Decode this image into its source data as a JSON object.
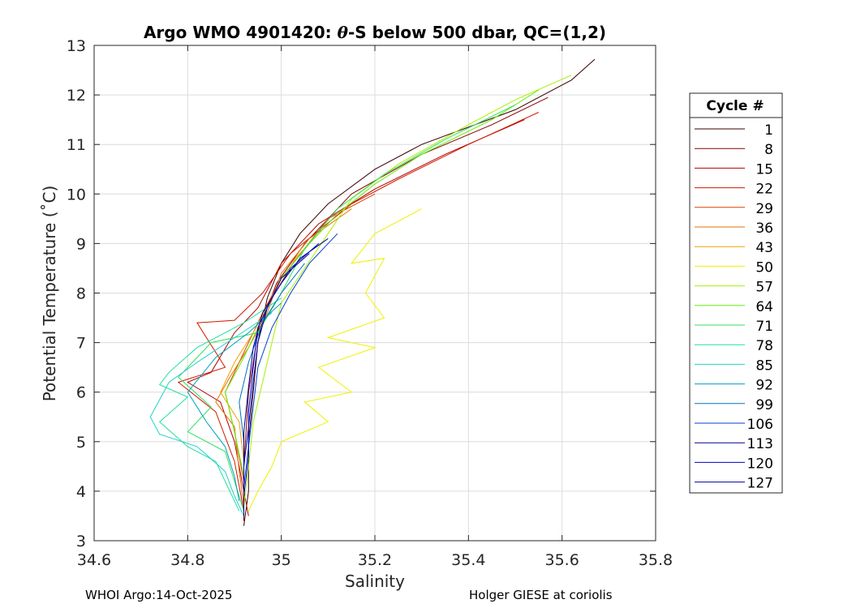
{
  "chart_data": {
    "type": "line",
    "title_main": "Argo WMO 4901420: ",
    "title_theta": "θ",
    "title_rest": "-S below 500 dbar,  QC=(1,2)",
    "xlabel": "Salinity",
    "ylabel": "Potential Temperature (˚C)",
    "xlim": [
      34.6,
      35.8
    ],
    "ylim": [
      3,
      13
    ],
    "xticks": [
      "34.6",
      "34.8",
      "35",
      "35.2",
      "35.4",
      "35.6",
      "35.8"
    ],
    "yticks": [
      "3",
      "4",
      "5",
      "6",
      "7",
      "8",
      "9",
      "10",
      "11",
      "12",
      "13"
    ],
    "grid": true,
    "legend": {
      "title": "Cycle #",
      "placement": "outside-right",
      "entries": [
        "1",
        "8",
        "15",
        "22",
        "29",
        "36",
        "43",
        "50",
        "57",
        "64",
        "71",
        "78",
        "85",
        "92",
        "99",
        "106",
        "113",
        "120",
        "127"
      ],
      "colors": [
        "#3a0000",
        "#8b0000",
        "#b40000",
        "#d01800",
        "#e04000",
        "#e87000",
        "#f0a000",
        "#f0f000",
        "#a8f000",
        "#60f000",
        "#30e060",
        "#20e0a0",
        "#20d0d0",
        "#00a0c0",
        "#0070c0",
        "#0040d0",
        "#000090",
        "#0000c0",
        "#0000a0"
      ]
    },
    "series": [
      {
        "values": [
          [
            35.67,
            12.72
          ],
          [
            35.62,
            12.3
          ],
          [
            35.5,
            11.7
          ],
          [
            35.3,
            11.0
          ],
          [
            35.2,
            10.5
          ],
          [
            35.1,
            9.8
          ],
          [
            35.04,
            9.2
          ],
          [
            35.0,
            8.6
          ],
          [
            34.97,
            7.9
          ],
          [
            34.95,
            7.0
          ],
          [
            34.94,
            6.0
          ],
          [
            34.93,
            5.0
          ],
          [
            34.93,
            4.0
          ],
          [
            34.92,
            3.3
          ]
        ]
      },
      {
        "values": [
          [
            35.57,
            11.95
          ],
          [
            35.45,
            11.4
          ],
          [
            35.3,
            10.8
          ],
          [
            35.15,
            10.0
          ],
          [
            35.05,
            9.0
          ],
          [
            34.99,
            8.2
          ],
          [
            34.95,
            7.2
          ],
          [
            34.93,
            6.0
          ],
          [
            34.92,
            4.5
          ],
          [
            34.92,
            3.4
          ]
        ]
      },
      {
        "values": [
          [
            35.52,
            11.5
          ],
          [
            35.35,
            10.8
          ],
          [
            35.2,
            10.1
          ],
          [
            35.08,
            9.4
          ],
          [
            35.0,
            8.6
          ],
          [
            34.95,
            7.7
          ],
          [
            34.9,
            7.2
          ],
          [
            34.85,
            6.4
          ],
          [
            34.8,
            6.2
          ],
          [
            34.87,
            5.8
          ],
          [
            34.9,
            5.0
          ],
          [
            34.92,
            4.0
          ],
          [
            34.93,
            3.5
          ]
        ]
      },
      {
        "values": [
          [
            35.55,
            11.65
          ],
          [
            35.4,
            11.0
          ],
          [
            35.25,
            10.3
          ],
          [
            35.15,
            9.8
          ],
          [
            35.02,
            8.8
          ],
          [
            34.96,
            8.0
          ],
          [
            34.9,
            7.45
          ],
          [
            34.82,
            7.4
          ],
          [
            34.88,
            6.5
          ],
          [
            34.78,
            6.2
          ],
          [
            34.86,
            5.6
          ],
          [
            34.9,
            4.6
          ],
          [
            34.92,
            3.6
          ]
        ]
      },
      {
        "values": [
          [
            35.2,
            10.0
          ],
          [
            35.1,
            9.5
          ],
          [
            35.05,
            8.9
          ],
          [
            35.0,
            8.3
          ],
          [
            34.96,
            7.6
          ],
          [
            34.92,
            6.8
          ],
          [
            34.88,
            6.0
          ],
          [
            34.9,
            5.2
          ],
          [
            34.92,
            4.2
          ]
        ]
      },
      {
        "values": [
          [
            35.15,
            9.7
          ],
          [
            35.06,
            9.1
          ],
          [
            35.0,
            8.4
          ],
          [
            34.97,
            7.6
          ],
          [
            34.93,
            6.9
          ],
          [
            34.89,
            6.3
          ],
          [
            34.86,
            5.8
          ],
          [
            34.9,
            5.3
          ],
          [
            34.91,
            4.4
          ],
          [
            34.92,
            3.7
          ]
        ]
      },
      {
        "values": [
          [
            35.1,
            9.4
          ],
          [
            35.03,
            8.7
          ],
          [
            34.98,
            7.9
          ],
          [
            34.94,
            7.2
          ],
          [
            34.9,
            6.6
          ],
          [
            34.87,
            6.0
          ],
          [
            34.91,
            5.4
          ],
          [
            34.92,
            4.6
          ]
        ]
      },
      {
        "values": [
          [
            35.3,
            9.7
          ],
          [
            35.2,
            9.2
          ],
          [
            35.15,
            8.6
          ],
          [
            35.22,
            8.7
          ],
          [
            35.18,
            8.0
          ],
          [
            35.22,
            7.5
          ],
          [
            35.1,
            7.1
          ],
          [
            35.2,
            6.9
          ],
          [
            35.08,
            6.5
          ],
          [
            35.15,
            6.0
          ],
          [
            35.05,
            5.8
          ],
          [
            35.1,
            5.4
          ],
          [
            35.0,
            5.0
          ],
          [
            34.98,
            4.5
          ],
          [
            34.95,
            4.0
          ],
          [
            34.93,
            3.6
          ]
        ]
      },
      {
        "values": [
          [
            35.62,
            12.4
          ],
          [
            35.5,
            11.9
          ],
          [
            35.4,
            11.4
          ],
          [
            35.25,
            10.6
          ],
          [
            35.15,
            9.9
          ],
          [
            35.1,
            9.2
          ],
          [
            35.05,
            8.5
          ],
          [
            35.0,
            7.8
          ],
          [
            34.98,
            7.0
          ],
          [
            34.96,
            6.2
          ],
          [
            34.94,
            5.4
          ],
          [
            34.93,
            4.5
          ],
          [
            34.92,
            3.7
          ]
        ]
      },
      {
        "values": [
          [
            35.55,
            12.1
          ],
          [
            35.45,
            11.5
          ],
          [
            35.3,
            10.8
          ],
          [
            35.2,
            10.2
          ],
          [
            35.12,
            9.6
          ],
          [
            35.06,
            9.0
          ],
          [
            35.0,
            8.3
          ],
          [
            34.96,
            7.5
          ],
          [
            34.92,
            6.7
          ],
          [
            34.88,
            6.0
          ],
          [
            34.9,
            5.2
          ],
          [
            34.92,
            4.3
          ]
        ]
      },
      {
        "values": [
          [
            35.5,
            11.8
          ],
          [
            35.35,
            11.1
          ],
          [
            35.22,
            10.4
          ],
          [
            35.12,
            9.7
          ],
          [
            35.05,
            8.9
          ],
          [
            35.0,
            8.0
          ],
          [
            34.95,
            7.2
          ],
          [
            34.85,
            7.0
          ],
          [
            34.78,
            6.3
          ],
          [
            34.85,
            5.7
          ],
          [
            34.8,
            5.2
          ],
          [
            34.88,
            4.8
          ],
          [
            34.9,
            4.2
          ],
          [
            34.92,
            3.6
          ]
        ]
      },
      {
        "values": [
          [
            35.0,
            7.9
          ],
          [
            34.92,
            7.4
          ],
          [
            34.82,
            6.9
          ],
          [
            34.76,
            6.4
          ],
          [
            34.74,
            6.15
          ],
          [
            34.8,
            5.9
          ],
          [
            34.74,
            5.4
          ],
          [
            34.8,
            4.9
          ],
          [
            34.86,
            4.6
          ],
          [
            34.89,
            4.0
          ],
          [
            34.91,
            3.6
          ]
        ]
      },
      {
        "values": [
          [
            34.98,
            7.6
          ],
          [
            34.9,
            7.1
          ],
          [
            34.82,
            6.6
          ],
          [
            34.76,
            6.2
          ],
          [
            34.72,
            5.5
          ],
          [
            34.74,
            5.15
          ],
          [
            34.82,
            4.9
          ],
          [
            34.88,
            4.4
          ],
          [
            34.9,
            3.9
          ],
          [
            34.92,
            3.5
          ]
        ]
      },
      {
        "values": [
          [
            35.0,
            7.8
          ],
          [
            34.93,
            7.2
          ],
          [
            34.86,
            6.7
          ],
          [
            34.8,
            6.0
          ],
          [
            34.84,
            5.4
          ],
          [
            34.88,
            4.9
          ],
          [
            34.9,
            4.3
          ],
          [
            34.91,
            3.8
          ]
        ]
      },
      {
        "values": [
          [
            35.05,
            8.6
          ],
          [
            35.0,
            8.0
          ],
          [
            34.96,
            7.4
          ],
          [
            34.93,
            6.6
          ],
          [
            34.91,
            5.8
          ],
          [
            34.92,
            5.0
          ],
          [
            34.92,
            4.2
          ],
          [
            34.92,
            3.7
          ]
        ]
      },
      {
        "values": [
          [
            35.12,
            9.2
          ],
          [
            35.06,
            8.6
          ],
          [
            35.02,
            8.0
          ],
          [
            34.98,
            7.3
          ],
          [
            34.95,
            6.5
          ],
          [
            34.94,
            5.7
          ],
          [
            34.93,
            4.9
          ],
          [
            34.92,
            4.1
          ],
          [
            34.92,
            3.6
          ]
        ]
      },
      {
        "values": [
          [
            35.1,
            9.1
          ],
          [
            35.04,
            8.7
          ],
          [
            35.0,
            8.2
          ],
          [
            34.96,
            7.6
          ],
          [
            34.94,
            6.9
          ],
          [
            34.93,
            6.1
          ],
          [
            34.92,
            5.2
          ],
          [
            34.92,
            4.3
          ],
          [
            34.92,
            3.5
          ]
        ]
      },
      {
        "values": [
          [
            35.08,
            9.0
          ],
          [
            35.02,
            8.5
          ],
          [
            34.98,
            7.9
          ],
          [
            34.95,
            7.3
          ],
          [
            34.94,
            6.5
          ],
          [
            34.93,
            5.6
          ],
          [
            34.93,
            4.7
          ],
          [
            34.92,
            3.9
          ]
        ]
      },
      {
        "values": [
          [
            35.06,
            8.8
          ],
          [
            35.0,
            8.3
          ],
          [
            34.97,
            7.7
          ],
          [
            34.95,
            7.0
          ],
          [
            34.94,
            6.2
          ],
          [
            34.93,
            5.3
          ],
          [
            34.92,
            4.5
          ],
          [
            34.92,
            3.8
          ]
        ]
      }
    ]
  },
  "footer": {
    "left": "WHOI Argo:14-Oct-2025",
    "right": "Holger GIESE at coriolis"
  }
}
